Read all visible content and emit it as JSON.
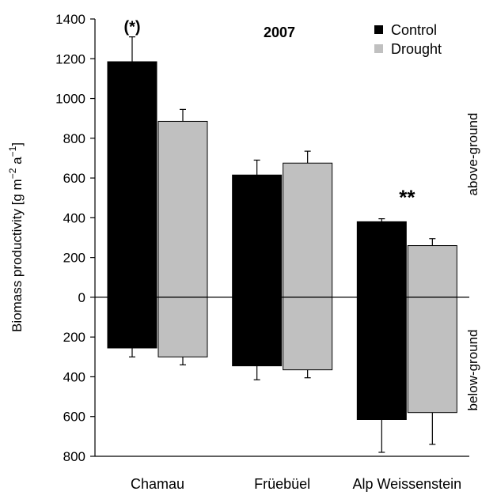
{
  "chart_data": {
    "type": "bar",
    "title": "2007",
    "ylabel": "Biomass productivity [g m^-2 a^-1]",
    "ylabel_parts": {
      "text": "Biomass productivity [g m",
      "exp1": "−2",
      "mid": " a",
      "exp2": "−1",
      "end": "]"
    },
    "ylim": [
      -800,
      1400
    ],
    "yticks": [
      1400,
      1200,
      1000,
      800,
      600,
      400,
      200,
      0,
      -200,
      -400,
      -600,
      -800
    ],
    "ytick_labels": [
      "1400",
      "1200",
      "1000",
      "800",
      "600",
      "400",
      "200",
      "0",
      "200",
      "400",
      "600",
      "800"
    ],
    "categories": [
      "Chamau",
      "Früebüel",
      "Alp Weissenstein"
    ],
    "series": [
      {
        "name": "Control",
        "color": "#000000",
        "above": [
          1185,
          615,
          380
        ],
        "above_err": [
          125,
          75,
          15
        ],
        "below": [
          -255,
          -345,
          -615
        ],
        "below_err": [
          45,
          70,
          165
        ]
      },
      {
        "name": "Drought",
        "color": "#c0c0c0",
        "above": [
          885,
          675,
          260
        ],
        "above_err": [
          60,
          60,
          35
        ],
        "below": [
          -300,
          -365,
          -580
        ],
        "below_err": [
          40,
          40,
          160
        ]
      }
    ],
    "legend": {
      "position": "top-right",
      "items": [
        "Control",
        "Drought"
      ]
    },
    "annotations": [
      {
        "category": "Chamau",
        "text": "(*)"
      },
      {
        "category": "Alp Weissenstein",
        "text": "**"
      }
    ],
    "side_labels": {
      "top": "above-ground",
      "bottom": "below-ground"
    },
    "grid": false
  }
}
